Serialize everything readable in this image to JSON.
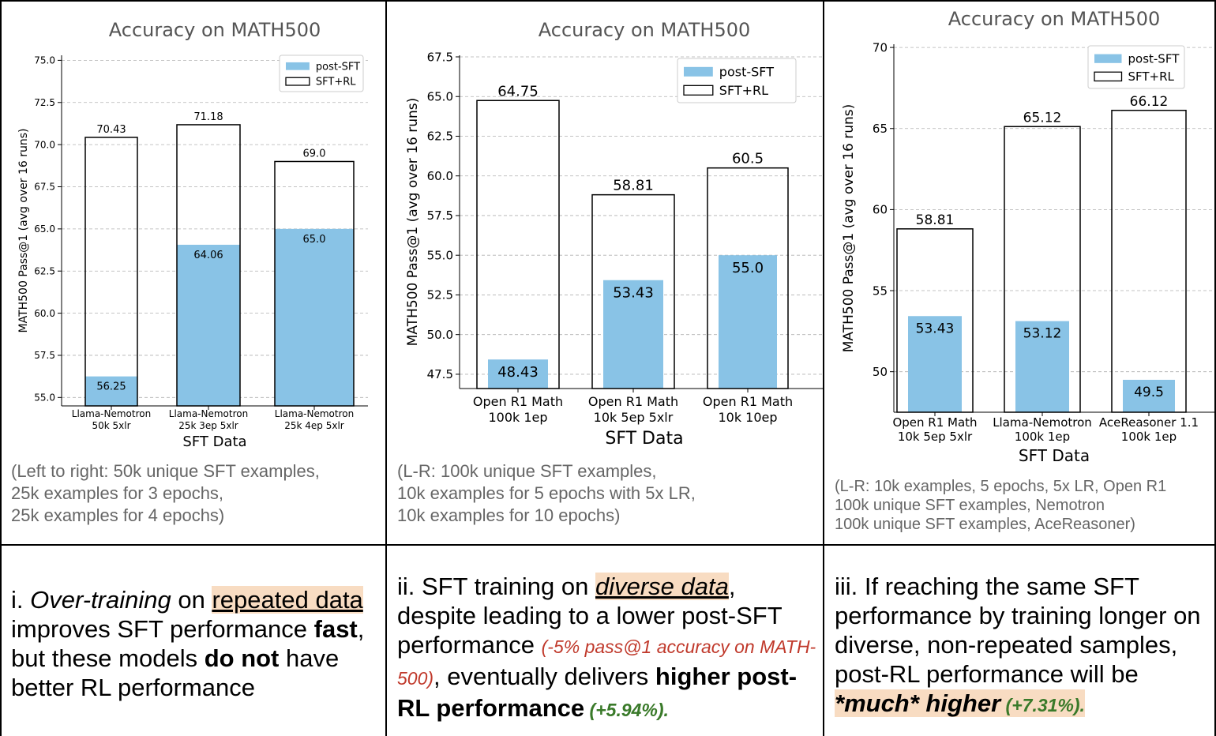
{
  "chart_data": [
    {
      "type": "bar",
      "title": "Accuracy on MATH500",
      "xlabel": "SFT Data",
      "ylabel": "MATH500 Pass@1 (avg over 16 runs)",
      "ylim": [
        54.5,
        75.3
      ],
      "yticks": [
        "55.0",
        "57.5",
        "60.0",
        "62.5",
        "65.0",
        "67.5",
        "70.0",
        "72.5",
        "75.0"
      ],
      "categories": [
        [
          "Llama-Nemotron",
          "50k 5xlr"
        ],
        [
          "Llama-Nemotron",
          "25k 3ep 5xlr"
        ],
        [
          "Llama-Nemotron",
          "25k 4ep 5xlr"
        ]
      ],
      "series": [
        {
          "name": "post-SFT",
          "style": "filled",
          "values": [
            56.25,
            64.06,
            65.0
          ],
          "labels": [
            "56.25",
            "64.06",
            "65.0"
          ]
        },
        {
          "name": "SFT+RL",
          "style": "outline",
          "values": [
            70.43,
            71.18,
            69.0
          ],
          "labels": [
            "70.43",
            "71.18",
            "69.0"
          ]
        }
      ],
      "grid": true,
      "legend": "top-right"
    },
    {
      "type": "bar",
      "title": "Accuracy on MATH500",
      "xlabel": "SFT Data",
      "ylabel": "MATH500 Pass@1 (avg over 16 runs)",
      "ylim": [
        46.6,
        67.6
      ],
      "yticks": [
        "47.5",
        "50.0",
        "52.5",
        "55.0",
        "57.5",
        "60.0",
        "62.5",
        "65.0",
        "67.5"
      ],
      "categories": [
        [
          "Open R1 Math",
          "100k 1ep"
        ],
        [
          "Open R1 Math",
          "10k 5ep 5xlr"
        ],
        [
          "Open R1 Math",
          "10k 10ep"
        ]
      ],
      "series": [
        {
          "name": "post-SFT",
          "style": "filled",
          "values": [
            48.43,
            53.43,
            55.0
          ],
          "labels": [
            "48.43",
            "53.43",
            "55.0"
          ]
        },
        {
          "name": "SFT+RL",
          "style": "outline",
          "values": [
            64.75,
            58.81,
            60.5
          ],
          "labels": [
            "64.75",
            "58.81",
            "60.5"
          ]
        }
      ],
      "grid": true,
      "legend": "top-right"
    },
    {
      "type": "bar",
      "title": "Accuracy on MATH500",
      "xlabel": "SFT Data",
      "ylabel": "MATH500 Pass@1 (avg over 16 runs)",
      "ylim": [
        47.5,
        70.2
      ],
      "yticks": [
        "50",
        "55",
        "60",
        "65",
        "70"
      ],
      "categories": [
        [
          "Open R1 Math",
          "10k 5ep 5xlr"
        ],
        [
          "Llama-Nemotron",
          "100k 1ep"
        ],
        [
          "AceReasoner 1.1",
          "100k 1ep"
        ]
      ],
      "series": [
        {
          "name": "post-SFT",
          "style": "filled",
          "values": [
            53.43,
            53.12,
            49.5
          ],
          "labels": [
            "53.43",
            "53.12",
            "49.5"
          ]
        },
        {
          "name": "SFT+RL",
          "style": "outline",
          "values": [
            58.81,
            65.12,
            66.12
          ],
          "labels": [
            "58.81",
            "65.12",
            "66.12"
          ]
        }
      ],
      "grid": true,
      "legend": "top-right"
    }
  ],
  "colors": {
    "post_sft": "#89c3e6",
    "outline": "#000000",
    "grid": "#b0b0b0",
    "caption": "#666666",
    "highlight": "#f8dcc2",
    "red": "#c0392b",
    "green": "#3a7a2a"
  },
  "captions": [
    [
      "(Left to right: 50k unique SFT examples,",
      "25k examples for 3 epochs,",
      "25k examples for 4 epochs)"
    ],
    [
      "(L-R: 100k unique SFT examples,",
      "10k examples for 5 epochs with 5x LR,",
      "10k examples for 10 epochs)"
    ],
    [
      "(L-R: 10k examples, 5 epochs, 5x LR, Open R1",
      "100k unique SFT examples, Nemotron",
      "100k unique SFT examples, AceReasoner)"
    ]
  ],
  "findings": {
    "f1": {
      "prefix": "i. ",
      "italic": "Over-training",
      "on": " on ",
      "hl": "repeated data",
      "mid": " improves SFT performance ",
      "bold1": "fast",
      "mid2": ", but these models ",
      "bold2": "do not",
      "end": " have better RL performance"
    },
    "f2": {
      "prefix": "ii. SFT training on ",
      "hl": "diverse data",
      "mid": ", despite leading to a lower post-SFT performance ",
      "red": "(-5% pass@1 accuracy on MATH-500)",
      "mid2": ", eventually delivers ",
      "bold": "higher post-RL performance",
      "green": " (+5.94%)."
    },
    "f3": {
      "prefix": "iii. If reaching the same SFT performance by training longer on diverse, non-repeated samples, post-RL performance will be ",
      "hl": "*much* higher",
      "green": " (+7.31%)."
    }
  }
}
